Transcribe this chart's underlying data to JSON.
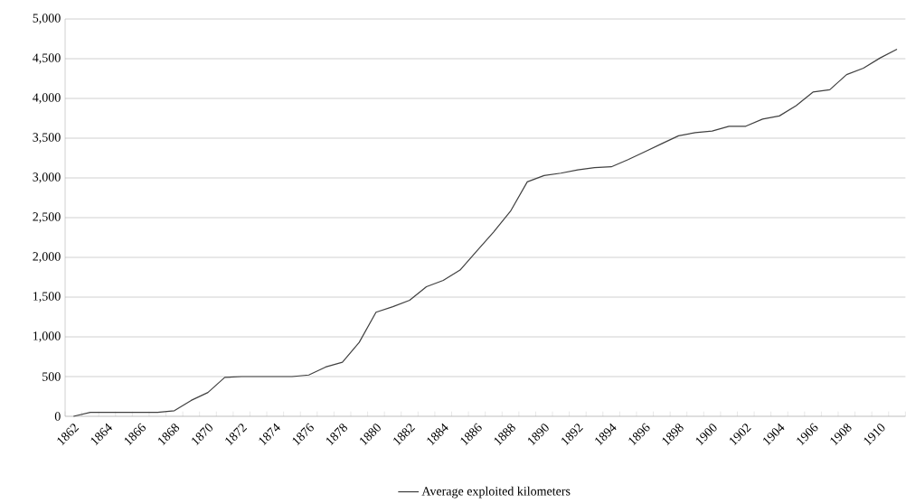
{
  "chart_data": {
    "type": "line",
    "categories": [
      "1862",
      null,
      "1864",
      null,
      "1866",
      null,
      "1868",
      null,
      "1870",
      null,
      "1872",
      null,
      "1874",
      null,
      "1876",
      null,
      "1878",
      null,
      "1880",
      null,
      "1882",
      null,
      "1884",
      null,
      "1886",
      null,
      "1888",
      null,
      "1890",
      null,
      "1892",
      null,
      "1894",
      null,
      "1896",
      null,
      "1898",
      null,
      "1900",
      null,
      "1902",
      null,
      "1904",
      null,
      "1906",
      null,
      "1908",
      null,
      "1910",
      null
    ],
    "series": [
      {
        "name": "Average exploited kilometers",
        "color": "#404040",
        "values": [
          0,
          50,
          50,
          50,
          50,
          50,
          70,
          200,
          300,
          490,
          500,
          500,
          500,
          500,
          520,
          620,
          680,
          930,
          1310,
          1380,
          1460,
          1630,
          1710,
          1840,
          2080,
          2320,
          2580,
          2950,
          3030,
          3060,
          3100,
          3130,
          3140,
          3230,
          3330,
          3430,
          3530,
          3570,
          3590,
          3650,
          3650,
          3740,
          3780,
          3910,
          4080,
          4110,
          4300,
          4380,
          4510,
          4620
        ]
      }
    ],
    "ylim": [
      0,
      5000
    ],
    "yticks": [
      0,
      {
        "value": 500,
        "label": "500"
      },
      {
        "value": 1000,
        "label": "1,000"
      },
      {
        "value": 1500,
        "label": "1,500"
      },
      {
        "value": 2000,
        "label": "2,000"
      },
      {
        "value": 2500,
        "label": "2,500"
      },
      {
        "value": 3000,
        "label": "3,000"
      },
      {
        "value": 3500,
        "label": "3,500"
      },
      {
        "value": 4000,
        "label": "4,000"
      },
      {
        "value": 4500,
        "label": "4,500"
      },
      {
        "value": 5000,
        "label": "5,000"
      }
    ],
    "grid": "y",
    "legend": "bottom",
    "marker": "none",
    "line_style": "solid"
  }
}
